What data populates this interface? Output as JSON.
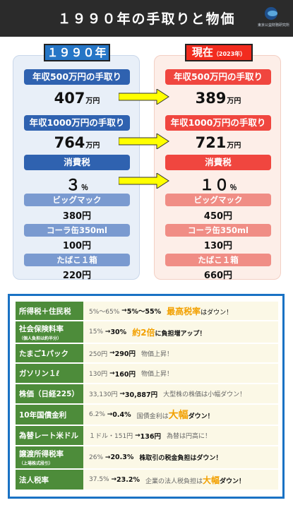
{
  "header": {
    "title": "１９９０年の手取りと物価",
    "logo_text": "東京公益財務研究所"
  },
  "left": {
    "tag": "１９９０年",
    "income500_label": "年収500万円の手取り",
    "income500_value": "407",
    "income1000_label": "年収1000万円の手取り",
    "income1000_value": "764",
    "tax_label": "消費税",
    "tax_value": "３",
    "tax_unit": "％",
    "bigmac_label": "ビッグマック",
    "bigmac_value": "380円",
    "cola_label": "コーラ缶350ml",
    "cola_value": "100円",
    "tobacco_label": "たばこ１箱",
    "tobacco_value": "220円"
  },
  "right": {
    "tag": "現在",
    "tag_year": "（2023年）",
    "income500_label": "年収500万円の手取り",
    "income500_value": "389",
    "income1000_label": "年収1000万円の手取り",
    "income1000_value": "721",
    "tax_label": "消費税",
    "tax_value": "１０",
    "tax_unit": "％",
    "bigmac_label": "ビッグマック",
    "bigmac_value": "450円",
    "cola_label": "コーラ缶350ml",
    "cola_value": "130円",
    "tobacco_label": "たばこ１箱",
    "tobacco_value": "660円"
  },
  "unit_man_yen": "万円",
  "table": {
    "rows": [
      {
        "label": "所得税＋住民税",
        "from": "5%～65%",
        "arrow": "→",
        "to": "5%～55%",
        "note_a": "最高税率",
        "note_b": "はダウン！"
      },
      {
        "label": "社会保険料率",
        "sub": "（個人負担は約半分）",
        "from": "15%",
        "arrow": "→",
        "to": "30%",
        "note_a": "約2倍",
        "note_b": "に負担増アップ！"
      },
      {
        "label": "たまご1パック",
        "from": "250円",
        "arrow": "→",
        "to": "290円",
        "note_b": "物価上昇！"
      },
      {
        "label": "ガソリン１ℓ",
        "from": "130円",
        "arrow": "→",
        "to": "160円",
        "note_b": "物価上昇！"
      },
      {
        "label": "株価（日経225）",
        "from": "33,130円",
        "arrow": "→",
        "to": "30,887円",
        "note_b": "大型株の株価は小幅ダウン！"
      },
      {
        "label": "10年国債金利",
        "from": "6.2%",
        "arrow": "→",
        "to": "0.4%",
        "note_pre": "国債金利は",
        "note_a": "大幅",
        "note_b": "ダウン！"
      },
      {
        "label": "為替レート米ドル",
        "from": "１ドル・151円",
        "arrow": "→",
        "to": "136円",
        "note_b": "為替は円高に！"
      },
      {
        "label": "譲渡所得税率",
        "sub": "（上場株式段引）",
        "from": "26%",
        "arrow": "→",
        "to": "20.3%",
        "note_b": "株取引の税金負担はダウン！"
      },
      {
        "label": "法人税率",
        "from": "37.5%",
        "arrow": "→",
        "to": "23.2%",
        "note_pre": "企業の法人税負担は",
        "note_a": "大幅",
        "note_b": "ダウン！"
      }
    ]
  },
  "colors": {
    "header": "#2b2b2b",
    "blue": "#2f62b0",
    "red": "#f0463f",
    "green": "#4d8c3a",
    "accent": "#f2a000",
    "arrow": "#ffff00"
  }
}
